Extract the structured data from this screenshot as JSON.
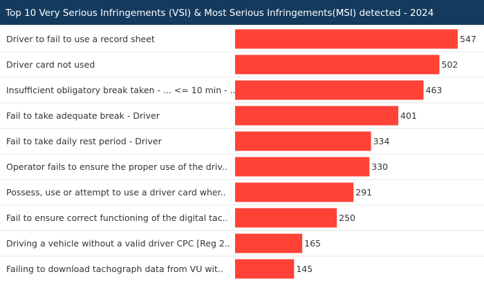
{
  "chart_data": {
    "type": "hbar",
    "title": "Top 10 Very Serious Infringements (VSI) & Most Serious Infringements(MSI) detected -  2024",
    "categories": [
      "Driver to fail to use a record sheet",
      "Driver card not used",
      "Insufficient obligatory break taken - ... <= 10 min - ..",
      "Fail to take adequate break - Driver",
      "Fail to take daily rest period - Driver",
      "Operator fails to ensure the proper use of the driv..",
      "Possess, use or attempt to use a driver card wher..",
      "Fail to ensure correct functioning of the digital tac..",
      "Driving a vehicle without a valid driver CPC [Reg 2..",
      "Failing to download tachograph data from VU wit.."
    ],
    "values": [
      547,
      502,
      463,
      401,
      334,
      330,
      291,
      250,
      165,
      145
    ],
    "color": "#ff4136"
  }
}
